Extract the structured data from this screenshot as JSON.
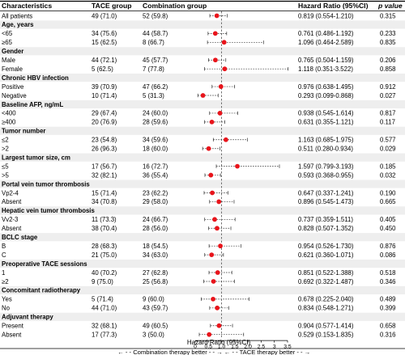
{
  "chart_data": {
    "type": "forest",
    "headers": {
      "characteristics": "Characteristics",
      "tace": "TACE group",
      "combination": "Combination group",
      "hr": "Hazard Ratio (95%CI)",
      "p": "p value"
    },
    "x_axis": {
      "label": "Hazard Ratio (95%CI)",
      "ticks": [
        0,
        0.5,
        1,
        1.5,
        2,
        2.5,
        3,
        3.5
      ],
      "tick_labels": [
        "0",
        "0.5",
        "1.0",
        "1.5",
        "2.0",
        "2.5",
        "3",
        "3.5"
      ],
      "range": [
        0,
        3.5
      ],
      "reference_line": 1
    },
    "footer": {
      "left": "← - - Combination therapy better - - →",
      "right": "← - - TACE therapy better - - →"
    },
    "rows": [
      {
        "kind": "item",
        "label": "All patients",
        "tace": "49 (71.0)",
        "comb": "52 (59.8)",
        "hr": 0.819,
        "lo": 0.554,
        "hi": 1.21,
        "hr_text": "0.819 (0.554-1.210)",
        "p": "0.315"
      },
      {
        "kind": "header",
        "label": "Age, years"
      },
      {
        "kind": "item",
        "label": "<65",
        "tace": "34 (75.6)",
        "comb": "44 (58.7)",
        "hr": 0.761,
        "lo": 0.486,
        "hi": 1.192,
        "hr_text": "0.761 (0.486-1.192)",
        "p": "0.233"
      },
      {
        "kind": "item",
        "label": "≥65",
        "tace": "15 (62.5)",
        "comb": "8 (66.7)",
        "hr": 1.096,
        "lo": 0.464,
        "hi": 2.589,
        "hr_text": "1.096 (0.464-2.589)",
        "p": "0.835"
      },
      {
        "kind": "header",
        "label": "Gender"
      },
      {
        "kind": "item",
        "label": "Male",
        "tace": "44 (72.1)",
        "comb": "45 (57.7)",
        "hr": 0.765,
        "lo": 0.504,
        "hi": 1.159,
        "hr_text": "0.765 (0.504-1.159)",
        "p": "0.206"
      },
      {
        "kind": "item",
        "label": "Female",
        "tace": "5 (62.5)",
        "comb": "7 (77.8)",
        "hr": 1.118,
        "lo": 0.351,
        "hi": 3.522,
        "hr_text": "1.118 (0.351-3.522)",
        "p": "0.858"
      },
      {
        "kind": "header",
        "label": "Chronic HBV infection"
      },
      {
        "kind": "item",
        "label": "Positive",
        "tace": "39 (70.9)",
        "comb": "47 (66.2)",
        "hr": 0.976,
        "lo": 0.638,
        "hi": 1.495,
        "hr_text": "0.976 (0.638-1.495)",
        "p": "0.912"
      },
      {
        "kind": "item",
        "label": "Negative",
        "tace": "10 (71.4)",
        "comb": "5 (31.3)",
        "hr": 0.293,
        "lo": 0.099,
        "hi": 0.868,
        "hr_text": "0.293 (0.099-0.868)",
        "p": "0.027"
      },
      {
        "kind": "header",
        "label": "Baseline AFP, ng/mL"
      },
      {
        "kind": "item",
        "label": "<400",
        "tace": "29 (67.4)",
        "comb": "24 (60.0)",
        "hr": 0.938,
        "lo": 0.545,
        "hi": 1.614,
        "hr_text": "0.938 (0.545-1.614)",
        "p": "0.817"
      },
      {
        "kind": "item",
        "label": "≥400",
        "tace": "20 (76.9)",
        "comb": "28 (59.6)",
        "hr": 0.631,
        "lo": 0.355,
        "hi": 1.121,
        "hr_text": "0.631 (0.355-1.121)",
        "p": "0.117"
      },
      {
        "kind": "header",
        "label": "Tumor number"
      },
      {
        "kind": "item",
        "label": "≤2",
        "tace": "23 (54.8)",
        "comb": "34 (59.6)",
        "hr": 1.163,
        "lo": 0.685,
        "hi": 1.975,
        "hr_text": "1.163 (0.685-1.975)",
        "p": "0.577"
      },
      {
        "kind": "item",
        "label": ">2",
        "tace": "26 (96.3)",
        "comb": "18 (60.0)",
        "hr": 0.511,
        "lo": 0.28,
        "hi": 0.934,
        "hr_text": "0.511 (0.280-0.934)",
        "p": "0.029"
      },
      {
        "kind": "header",
        "label": "Largest tumor size, cm"
      },
      {
        "kind": "item",
        "label": "≤5",
        "tace": "17 (56.7)",
        "comb": "16 (72.7)",
        "hr": 1.597,
        "lo": 0.799,
        "hi": 3.193,
        "hr_text": "1.597 (0.799-3.193)",
        "p": "0.185"
      },
      {
        "kind": "item",
        "label": ">5",
        "tace": "32 (82.1)",
        "comb": "36 (55.4)",
        "hr": 0.593,
        "lo": 0.368,
        "hi": 0.955,
        "hr_text": "0.593 (0.368-0.955)",
        "p": "0.032"
      },
      {
        "kind": "header",
        "label": "Portal vein tumor thrombosis"
      },
      {
        "kind": "item",
        "label": "Vp2-4",
        "tace": "15 (71.4)",
        "comb": "23 (62.2)",
        "hr": 0.647,
        "lo": 0.337,
        "hi": 1.241,
        "hr_text": "0.647 (0.337-1.241)",
        "p": "0.190"
      },
      {
        "kind": "item",
        "label": "Absent",
        "tace": "34 (70.8)",
        "comb": "29 (58.0)",
        "hr": 0.896,
        "lo": 0.545,
        "hi": 1.473,
        "hr_text": "0.896 (0.545-1.473)",
        "p": "0.665"
      },
      {
        "kind": "header",
        "label": "Hepatic vein tumor thrombosis"
      },
      {
        "kind": "item",
        "label": "Vv2-3",
        "tace": "11 (73.3)",
        "comb": "24 (66.7)",
        "hr": 0.737,
        "lo": 0.359,
        "hi": 1.511,
        "hr_text": "0.737 (0.359-1.511)",
        "p": "0.405"
      },
      {
        "kind": "item",
        "label": "Absent",
        "tace": "38 (70.4)",
        "comb": "28 (56.0)",
        "hr": 0.828,
        "lo": 0.507,
        "hi": 1.352,
        "hr_text": "0.828 (0.507-1.352)",
        "p": "0.450"
      },
      {
        "kind": "header",
        "label": "BCLC stage"
      },
      {
        "kind": "item",
        "label": "B",
        "tace": "28 (68.3)",
        "comb": "18 (54.5)",
        "hr": 0.954,
        "lo": 0.526,
        "hi": 1.73,
        "hr_text": "0.954 (0.526-1.730)",
        "p": "0.876"
      },
      {
        "kind": "item",
        "label": "C",
        "tace": "21 (75.0)",
        "comb": "34 (63.0)",
        "hr": 0.621,
        "lo": 0.36,
        "hi": 1.071,
        "hr_text": "0.621 (0.360-1.071)",
        "p": "0.086"
      },
      {
        "kind": "header",
        "label": "Preoperative TACE sessions"
      },
      {
        "kind": "item",
        "label": "1",
        "tace": "40 (70.2)",
        "comb": "27 (62.8)",
        "hr": 0.851,
        "lo": 0.522,
        "hi": 1.388,
        "hr_text": "0.851 (0.522-1.388)",
        "p": "0.518"
      },
      {
        "kind": "item",
        "label": "≥2",
        "tace": "9 (75.0)",
        "comb": "25 (56.8)",
        "hr": 0.692,
        "lo": 0.322,
        "hi": 1.487,
        "hr_text": "0.692 (0.322-1.487)",
        "p": "0.346"
      },
      {
        "kind": "header",
        "label": "Concomitant radiotherapy"
      },
      {
        "kind": "item",
        "label": "Yes",
        "tace": "5 (71.4)",
        "comb": "9 (60.0)",
        "hr": 0.678,
        "lo": 0.225,
        "hi": 2.04,
        "hr_text": "0.678 (0.225-2.040)",
        "p": "0.489"
      },
      {
        "kind": "item",
        "label": "No",
        "tace": "44 (71.0)",
        "comb": "43 (59.7)",
        "hr": 0.834,
        "lo": 0.548,
        "hi": 1.271,
        "hr_text": "0.834 (0.548-1.271)",
        "p": "0.399"
      },
      {
        "kind": "header",
        "label": "Adjuvant therapy"
      },
      {
        "kind": "item",
        "label": "Present",
        "tace": "32 (68.1)",
        "comb": "49 (60.5)",
        "hr": 0.904,
        "lo": 0.577,
        "hi": 1.414,
        "hr_text": "0.904 (0.577-1.414)",
        "p": "0.658"
      },
      {
        "kind": "item",
        "label": "Absent",
        "tace": "17 (77.3)",
        "comb": "3 (50.0)",
        "hr": 0.529,
        "lo": 0.153,
        "hi": 1.835,
        "hr_text": "0.529 (0.153-1.835)",
        "p": "0.316"
      }
    ],
    "colors": {
      "point": "#e8141b",
      "ci_line": "#333333",
      "reference_line": "#555555",
      "rule": "#000000",
      "header_row_bg": "#eeeeee"
    }
  }
}
